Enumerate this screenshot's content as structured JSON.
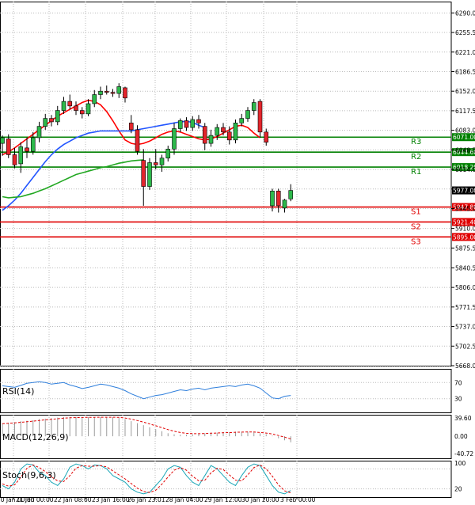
{
  "chart_data": {
    "type": "candlestick",
    "instrument_note": "",
    "price_axis": {
      "ticks": [
        6290.0,
        6255.5,
        6221.0,
        6186.5,
        6152.0,
        6117.5,
        6083.0,
        6048.5,
        6014.0,
        5979.5,
        5945.0,
        5910.0,
        5875.5,
        5840.5,
        5806.0,
        5771.5,
        5737.0,
        5702.5,
        5668.0
      ],
      "tick_labels": [
        "6290.00",
        "6255.50",
        "6221.00",
        "6186.50",
        "6152.00",
        "6117.50",
        "6083.00",
        "6048.50",
        "6014.00",
        "5979.50",
        "5945.00",
        "5910.00",
        "5875.50",
        "5840.50",
        "5806.00",
        "5771.50",
        "5737.00",
        "5702.50",
        "5668.00"
      ],
      "range": [
        5668.0,
        6310.0
      ]
    },
    "time_axis": {
      "labels": [
        "20 Jan 00:00",
        "21 Jan 00:00",
        "22 Jan 08:00",
        "23 Jan 16:00",
        "26 Jan 23:01",
        "28 Jan 04:00",
        "29 Jan 12:00",
        "30 Jan 20:00",
        "3 Feb 00:00"
      ]
    },
    "current_price": "5977.08",
    "levels": [
      {
        "name": "R3",
        "price": 6071.0,
        "label": "6071.00",
        "kind": "resistance"
      },
      {
        "name": "R2",
        "price": 6044.6,
        "label": "6044.60",
        "kind": "resistance"
      },
      {
        "name": "R1",
        "price": 6018.2,
        "label": "6018.20",
        "kind": "resistance"
      },
      {
        "name": "S1",
        "price": 5947.8,
        "label": "5947.80",
        "kind": "support"
      },
      {
        "name": "S2",
        "price": 5921.4,
        "label": "5921.40",
        "kind": "support"
      },
      {
        "name": "S3",
        "price": 5895.0,
        "label": "5895.00",
        "kind": "support"
      }
    ],
    "candles": [
      {
        "o": 6060,
        "h": 6074,
        "l": 6038,
        "c": 6070
      },
      {
        "o": 6068,
        "h": 6076,
        "l": 6034,
        "c": 6040
      },
      {
        "o": 6040,
        "h": 6052,
        "l": 6016,
        "c": 6022
      },
      {
        "o": 6024,
        "h": 6062,
        "l": 6008,
        "c": 6054
      },
      {
        "o": 6052,
        "h": 6070,
        "l": 6034,
        "c": 6046
      },
      {
        "o": 6046,
        "h": 6080,
        "l": 6040,
        "c": 6070
      },
      {
        "o": 6070,
        "h": 6098,
        "l": 6062,
        "c": 6090
      },
      {
        "o": 6090,
        "h": 6112,
        "l": 6084,
        "c": 6104
      },
      {
        "o": 6104,
        "h": 6110,
        "l": 6090,
        "c": 6098
      },
      {
        "o": 6098,
        "h": 6126,
        "l": 6092,
        "c": 6118
      },
      {
        "o": 6118,
        "h": 6142,
        "l": 6112,
        "c": 6134
      },
      {
        "o": 6134,
        "h": 6146,
        "l": 6120,
        "c": 6126
      },
      {
        "o": 6126,
        "h": 6134,
        "l": 6110,
        "c": 6118
      },
      {
        "o": 6118,
        "h": 6124,
        "l": 6104,
        "c": 6112
      },
      {
        "o": 6112,
        "h": 6138,
        "l": 6108,
        "c": 6130
      },
      {
        "o": 6130,
        "h": 6154,
        "l": 6124,
        "c": 6146
      },
      {
        "o": 6146,
        "h": 6160,
        "l": 6138,
        "c": 6152
      },
      {
        "o": 6152,
        "h": 6162,
        "l": 6146,
        "c": 6150
      },
      {
        "o": 6150,
        "h": 6156,
        "l": 6142,
        "c": 6148
      },
      {
        "o": 6148,
        "h": 6166,
        "l": 6140,
        "c": 6160
      },
      {
        "o": 6158,
        "h": 6160,
        "l": 6132,
        "c": 6140
      },
      {
        "o": 6096,
        "h": 6110,
        "l": 6078,
        "c": 6084
      },
      {
        "o": 6084,
        "h": 6092,
        "l": 6040,
        "c": 6046
      },
      {
        "o": 6030,
        "h": 6050,
        "l": 5950,
        "c": 5984
      },
      {
        "o": 5984,
        "h": 6034,
        "l": 5978,
        "c": 6026
      },
      {
        "o": 6026,
        "h": 6050,
        "l": 6014,
        "c": 6022
      },
      {
        "o": 6022,
        "h": 6040,
        "l": 6010,
        "c": 6034
      },
      {
        "o": 6034,
        "h": 6056,
        "l": 6028,
        "c": 6050
      },
      {
        "o": 6050,
        "h": 6096,
        "l": 6040,
        "c": 6086
      },
      {
        "o": 6086,
        "h": 6104,
        "l": 6080,
        "c": 6100
      },
      {
        "o": 6100,
        "h": 6106,
        "l": 6082,
        "c": 6088
      },
      {
        "o": 6088,
        "h": 6108,
        "l": 6082,
        "c": 6102
      },
      {
        "o": 6102,
        "h": 6110,
        "l": 6086,
        "c": 6096
      },
      {
        "o": 6090,
        "h": 6096,
        "l": 6048,
        "c": 6060
      },
      {
        "o": 6060,
        "h": 6084,
        "l": 6054,
        "c": 6074
      },
      {
        "o": 6074,
        "h": 6094,
        "l": 6066,
        "c": 6088
      },
      {
        "o": 6088,
        "h": 6096,
        "l": 6074,
        "c": 6080
      },
      {
        "o": 6080,
        "h": 6090,
        "l": 6058,
        "c": 6066
      },
      {
        "o": 6066,
        "h": 6102,
        "l": 6060,
        "c": 6096
      },
      {
        "o": 6096,
        "h": 6112,
        "l": 6090,
        "c": 6104
      },
      {
        "o": 6104,
        "h": 6124,
        "l": 6098,
        "c": 6118
      },
      {
        "o": 6118,
        "h": 6138,
        "l": 6110,
        "c": 6132
      },
      {
        "o": 6134,
        "h": 6138,
        "l": 6070,
        "c": 6080
      },
      {
        "o": 6080,
        "h": 6086,
        "l": 6056,
        "c": 6062
      },
      {
        "o": 5950,
        "h": 5980,
        "l": 5940,
        "c": 5976
      },
      {
        "o": 5976,
        "h": 5980,
        "l": 5938,
        "c": 5950
      },
      {
        "o": 5946,
        "h": 5962,
        "l": 5938,
        "c": 5960
      },
      {
        "o": 5962,
        "h": 5988,
        "l": 5958,
        "c": 5977
      }
    ],
    "moving_averages": [
      {
        "name": "red",
        "color": "#ff0000",
        "values": [
          6040,
          6045,
          6052,
          6060,
          6068,
          6076,
          6084,
          6092,
          6100,
          6108,
          6114,
          6120,
          6126,
          6132,
          6136,
          6134,
          6128,
          6116,
          6100,
          6082,
          6066,
          6060,
          6058,
          6060,
          6064,
          6070,
          6076,
          6080,
          6082,
          6080,
          6076,
          6072,
          6068,
          6066,
          6068,
          6072,
          6078,
          6084,
          6090,
          6092,
          6088,
          6078,
          6070
        ]
      },
      {
        "name": "blue",
        "color": "#2255ff",
        "values": [
          5942,
          5950,
          5960,
          5972,
          5986,
          6000,
          6014,
          6028,
          6040,
          6050,
          6058,
          6064,
          6070,
          6074,
          6078,
          6080,
          6082,
          6082,
          6082,
          6082,
          6082,
          6082,
          6084,
          6086,
          6088,
          6090,
          6092,
          6094,
          6096,
          6098,
          6099,
          6097,
          6092,
          6088
        ]
      },
      {
        "name": "green",
        "color": "#22a822",
        "values": [
          5966,
          5964,
          5965,
          5966,
          5969,
          5972,
          5976,
          5980,
          5985,
          5990,
          5995,
          6000,
          6005,
          6008,
          6011,
          6014,
          6017,
          6019,
          6022,
          6025,
          6027,
          6029,
          6030,
          6031
        ]
      }
    ],
    "indicators": [
      {
        "name": "RSI(14)",
        "ticks": [
          "70",
          "30"
        ],
        "line": [
          62,
          60,
          58,
          63,
          68,
          70,
          72,
          70,
          66,
          68,
          70,
          64,
          60,
          55,
          58,
          62,
          66,
          64,
          60,
          56,
          50,
          42,
          36,
          30,
          34,
          38,
          40,
          44,
          48,
          52,
          50,
          54,
          56,
          52,
          56,
          58,
          60,
          62,
          60,
          64,
          66,
          62,
          56,
          44,
          32,
          30,
          36,
          38
        ]
      },
      {
        "name": "MACD(12,26,9)",
        "ticks": [
          "39.60",
          "0.00",
          "-40.72"
        ],
        "histogram": [
          25,
          27,
          28,
          30,
          31,
          32,
          34,
          35,
          36,
          37,
          38,
          38,
          38,
          38,
          38,
          38,
          38,
          38,
          38,
          37,
          34,
          30,
          26,
          22,
          18,
          14,
          10,
          6,
          4,
          3,
          3,
          4,
          5,
          6,
          7,
          7,
          8,
          8,
          9,
          9,
          9,
          8,
          6,
          4,
          1,
          -4,
          -8,
          -12
        ]
      },
      {
        "name": "Stoch(9,6,3)",
        "ticks": [
          "100",
          "20"
        ],
        "k": [
          30,
          20,
          40,
          80,
          95,
          92,
          70,
          60,
          40,
          30,
          50,
          85,
          95,
          90,
          80,
          92,
          90,
          80,
          60,
          50,
          40,
          20,
          10,
          5,
          10,
          30,
          50,
          80,
          90,
          85,
          60,
          40,
          30,
          60,
          90,
          80,
          60,
          40,
          30,
          60,
          85,
          95,
          90,
          60,
          30,
          10,
          5,
          15
        ],
        "d": [
          35,
          28,
          32,
          55,
          82,
          92,
          84,
          72,
          56,
          44,
          42,
          60,
          82,
          90,
          88,
          88,
          90,
          86,
          74,
          62,
          50,
          36,
          22,
          12,
          9,
          16,
          34,
          56,
          76,
          84,
          76,
          58,
          44,
          46,
          68,
          82,
          78,
          62,
          46,
          44,
          62,
          84,
          92,
          80,
          58,
          32,
          14,
          8
        ]
      }
    ]
  }
}
